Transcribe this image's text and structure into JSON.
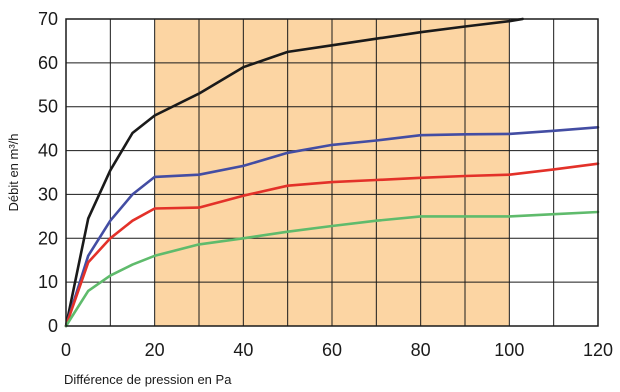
{
  "chart_data": {
    "type": "line",
    "title": "",
    "xlabel": "Différence de pression en Pa",
    "ylabel": "Débit en m³/h",
    "xlim": [
      0,
      120
    ],
    "ylim": [
      0,
      70
    ],
    "xticks": [
      0,
      20,
      40,
      60,
      80,
      100,
      120
    ],
    "yticks": [
      0,
      10,
      20,
      30,
      40,
      50,
      60,
      70
    ],
    "xgrid_step": 10,
    "ygrid_step": 10,
    "grid": true,
    "highlight_band": {
      "x_from": 20,
      "x_to": 100,
      "color": "#fcd5a3"
    },
    "series": [
      {
        "color": "#1a1a1a",
        "x": [
          0,
          5,
          10,
          15,
          20,
          30,
          40,
          50,
          60,
          70,
          80,
          90,
          100,
          103
        ],
        "y": [
          0,
          24.5,
          35.5,
          44,
          48,
          53,
          59,
          62.5,
          64,
          65.5,
          67,
          68.3,
          69.5,
          70
        ]
      },
      {
        "color": "#434da3",
        "x": [
          0,
          5,
          10,
          15,
          20,
          30,
          40,
          50,
          60,
          70,
          80,
          90,
          100,
          110,
          120
        ],
        "y": [
          0,
          16,
          24,
          30,
          34,
          34.5,
          36.5,
          39.5,
          41.3,
          42.3,
          43.5,
          43.7,
          43.8,
          44.5,
          45.3
        ]
      },
      {
        "color": "#e33129",
        "x": [
          0,
          5,
          10,
          15,
          20,
          30,
          40,
          50,
          60,
          70,
          80,
          90,
          100,
          110,
          120
        ],
        "y": [
          0,
          14.5,
          20,
          24,
          26.8,
          27,
          29.7,
          32,
          32.8,
          33.3,
          33.8,
          34.2,
          34.5,
          35.7,
          37
        ]
      },
      {
        "color": "#5fbb6c",
        "x": [
          0,
          5,
          10,
          15,
          20,
          30,
          40,
          50,
          60,
          70,
          80,
          90,
          100,
          110,
          120
        ],
        "y": [
          0,
          8,
          11.5,
          14,
          16,
          18.6,
          20,
          21.5,
          22.8,
          24,
          25,
          25,
          25,
          25.5,
          26
        ]
      }
    ]
  }
}
